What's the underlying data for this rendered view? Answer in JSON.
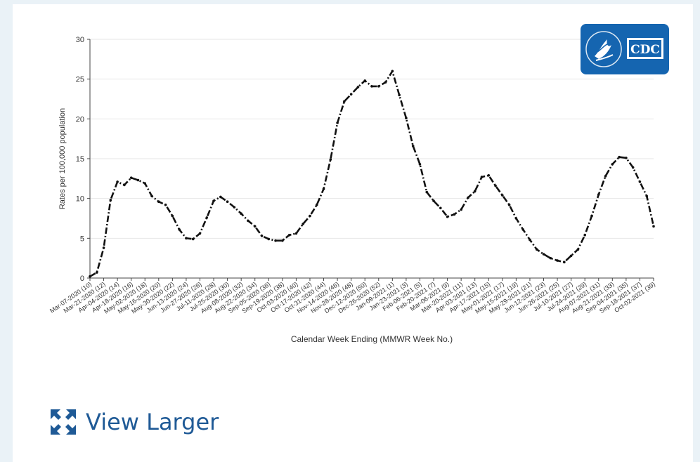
{
  "chart_data": {
    "type": "line",
    "xlabel": "Calendar Week Ending (MMWR Week No.)",
    "ylabel": "Rates per 100,000 population",
    "ylim": [
      0,
      30
    ],
    "yticks": [
      0,
      5,
      10,
      15,
      20,
      25,
      30
    ],
    "grid": "horizontal",
    "x_tick_labels": [
      "Mar-07-2020 (10)",
      "Mar-21-2020 (12)",
      "Apr-04-2020 (14)",
      "Apr-18-2020 (16)",
      "May-02-2020 (18)",
      "May-16-2020 (20)",
      "May-30-2020 (22)",
      "Jun-13-2020 (24)",
      "Jun-27-2020 (26)",
      "Jul-11-2020 (28)",
      "Jul-25-2020 (30)",
      "Aug-08-2020 (32)",
      "Aug-22-2020 (34)",
      "Sep-05-2020 (36)",
      "Sep-19-2020 (38)",
      "Oct-03-2020 (40)",
      "Oct-17-2020 (42)",
      "Oct-31-2020 (44)",
      "Nov-14-2020 (46)",
      "Nov-28-2020 (48)",
      "Dec-12-2020 (50)",
      "Dec-26-2020 (52)",
      "Jan-09-2021 (1)",
      "Jan-23-2021 (3)",
      "Feb-06-2021 (5)",
      "Feb-20-2021 (7)",
      "Mar-06-2021 (9)",
      "Mar-20-2021 (11)",
      "Apr-03-2021 (13)",
      "Apr-17-2021 (15)",
      "May-01-2021 (17)",
      "May-15-2021 (19)",
      "May-29-2021 (21)",
      "Jun-12-2021 (23)",
      "Jun-26-2021 (25)",
      "Jul-10-2021 (27)",
      "Jul-24-2021 (29)",
      "Aug-07-2021 (31)",
      "Aug-21-2021 (33)",
      "Sep-04-2021 (35)",
      "Sep-18-2021 (37)",
      "Oct-02-2021 (39)"
    ],
    "values": [
      0.2,
      0.7,
      3.8,
      9.8,
      12.1,
      11.7,
      12.6,
      12.3,
      11.9,
      10.3,
      9.6,
      9.2,
      7.8,
      6.1,
      5.0,
      4.9,
      5.6,
      7.6,
      9.7,
      10.2,
      9.6,
      8.9,
      8.1,
      7.2,
      6.5,
      5.3,
      4.9,
      4.7,
      4.7,
      5.4,
      5.6,
      6.8,
      7.8,
      9.2,
      11.2,
      14.9,
      19.5,
      22.2,
      23.1,
      24.0,
      24.8,
      24.1,
      24.1,
      24.6,
      26.0,
      23.0,
      20.1,
      16.6,
      14.3,
      10.8,
      9.7,
      8.8,
      7.7,
      8.0,
      8.6,
      10.1,
      10.9,
      12.7,
      12.9,
      11.6,
      10.4,
      9.2,
      7.5,
      6.1,
      4.8,
      3.6,
      3.0,
      2.5,
      2.2,
      2.0,
      2.8,
      3.6,
      5.4,
      7.8,
      10.5,
      12.8,
      14.3,
      15.2,
      15.1,
      13.9,
      12.1,
      10.3,
      6.5
    ],
    "line_color": "#111111"
  },
  "logo": {
    "text": "CDC",
    "bg_color": "#1565b0"
  },
  "view_larger": {
    "label": "View Larger",
    "color": "#1f5a96"
  }
}
